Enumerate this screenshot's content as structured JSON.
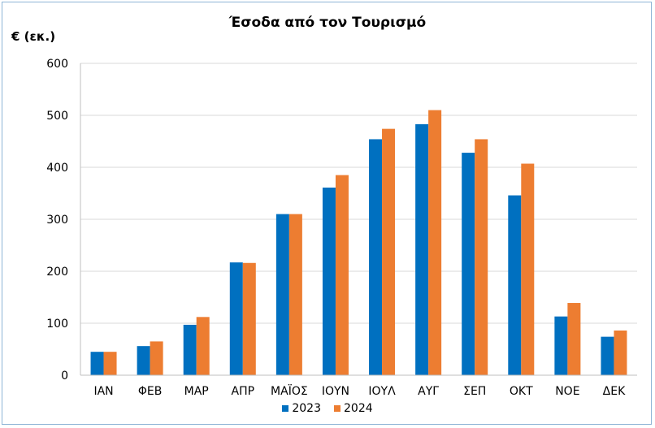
{
  "chart_data": {
    "type": "bar",
    "title": "Έσοδα από τον Τουρισμό",
    "ylabel": "€ (εκ.)",
    "xlabel": "",
    "ylim": [
      0,
      600
    ],
    "yticks": [
      0,
      100,
      200,
      300,
      400,
      500,
      600
    ],
    "grid": true,
    "legend_position": "bottom",
    "categories": [
      "ΙΑΝ",
      "ΦΕΒ",
      "ΜΑΡ",
      "ΑΠΡ",
      "ΜΑΪΟΣ",
      "ΙΟΥΝ",
      "ΙΟΥΛ",
      "ΑΥΓ",
      "ΣΕΠ",
      "ΟΚΤ",
      "ΝΟΕ",
      "ΔΕΚ"
    ],
    "series": [
      {
        "name": "2023",
        "color": "#0070c0",
        "values": [
          45,
          56,
          97,
          217,
          310,
          361,
          454,
          483,
          428,
          346,
          113,
          74
        ]
      },
      {
        "name": "2024",
        "color": "#ed7d31",
        "values": [
          45,
          65,
          112,
          216,
          310,
          385,
          474,
          510,
          454,
          407,
          139,
          86
        ]
      }
    ]
  }
}
